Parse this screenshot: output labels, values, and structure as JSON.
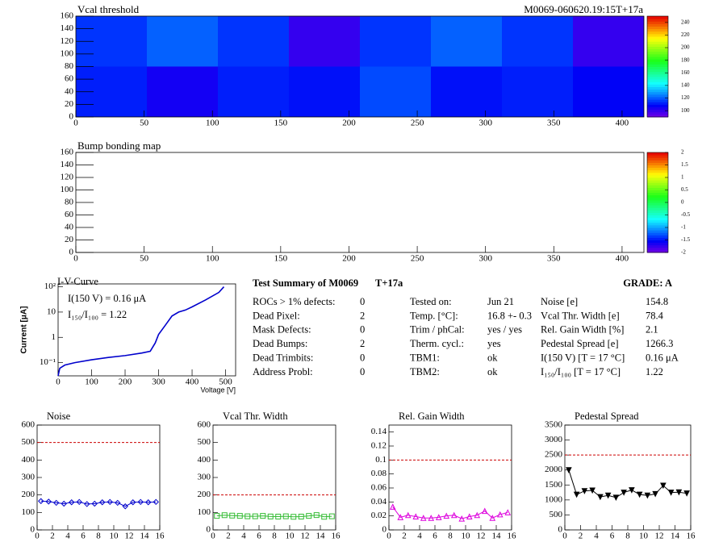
{
  "header": "M0069-060620.19:15T+17a",
  "chart_data": [
    {
      "type": "heatmap",
      "title": "Vcal threshold",
      "xbins": [
        0,
        52,
        104,
        156,
        208,
        260,
        312,
        364,
        416
      ],
      "ybins": [
        0,
        80,
        160
      ],
      "values": [
        [
          112,
          105,
          112,
          110,
          118,
          110,
          112,
          108
        ],
        [
          115,
          121,
          115,
          100,
          115,
          121,
          115,
          100
        ]
      ],
      "xlim": [
        0,
        416
      ],
      "ylim": [
        0,
        160
      ],
      "xticks": [
        0,
        50,
        100,
        150,
        200,
        250,
        300,
        350,
        400
      ],
      "yticks": [
        0,
        20,
        40,
        60,
        80,
        100,
        120,
        140,
        160
      ],
      "zlim": [
        90,
        250
      ],
      "zticks": [
        100,
        120,
        140,
        160,
        180,
        200,
        220,
        240
      ]
    },
    {
      "type": "heatmap",
      "title": "Bump bonding map",
      "xlim": [
        0,
        416
      ],
      "ylim": [
        0,
        160
      ],
      "xticks": [
        0,
        50,
        100,
        150,
        200,
        250,
        300,
        350,
        400
      ],
      "yticks": [
        0,
        20,
        40,
        60,
        80,
        100,
        120,
        140,
        160
      ],
      "zlim": [
        -2,
        2
      ],
      "zticks": [
        -2,
        -1.5,
        -1,
        -0.5,
        0,
        0.5,
        1,
        1.5,
        2
      ]
    },
    {
      "type": "line",
      "title": "I-V-Curve",
      "x_label": "Voltage [V]",
      "y_label": "Current [μA]",
      "annotations": [
        "I(150 V) = 0.16 μA",
        "I₁₅₀/I₁₀₀ =  1.22"
      ],
      "x": [
        0,
        5,
        20,
        50,
        100,
        150,
        200,
        250,
        275,
        290,
        300,
        320,
        340,
        360,
        380,
        400,
        440,
        480,
        495
      ],
      "values": [
        0.03,
        0.06,
        0.08,
        0.1,
        0.13,
        0.16,
        0.19,
        0.24,
        0.28,
        0.6,
        1.3,
        3,
        7,
        10,
        12,
        16,
        30,
        60,
        100
      ],
      "color": "#0000cc",
      "log_y": true,
      "xlim": [
        0,
        530
      ],
      "ylim": [
        0.03,
        130
      ],
      "xticks": [
        0,
        100,
        200,
        300,
        400,
        500
      ],
      "yticks": [
        {
          "value": 0.1,
          "label": "10⁻¹"
        },
        1,
        10,
        {
          "value": 100,
          "label": "10²"
        }
      ]
    },
    {
      "type": "line",
      "title": "Noise",
      "marker": "diamond",
      "color": "#0000cc",
      "x": [
        0.5,
        1.5,
        2.5,
        3.5,
        4.5,
        5.5,
        6.5,
        7.5,
        8.5,
        9.5,
        10.5,
        11.5,
        12.5,
        13.5,
        14.5,
        15.5
      ],
      "values": [
        165,
        162,
        155,
        150,
        158,
        160,
        148,
        150,
        158,
        160,
        155,
        135,
        158,
        160,
        158,
        160
      ],
      "threshold": 500,
      "xlim": [
        0,
        16
      ],
      "ylim": [
        0,
        600
      ],
      "xticks": [
        0,
        2,
        4,
        6,
        8,
        10,
        12,
        14,
        16
      ],
      "yticks": [
        0,
        100,
        200,
        300,
        400,
        500,
        600
      ]
    },
    {
      "type": "line",
      "title": "Vcal Thr. Width",
      "marker": "square",
      "color": "#33bb33",
      "x": [
        0.5,
        1.5,
        2.5,
        3.5,
        4.5,
        5.5,
        6.5,
        7.5,
        8.5,
        9.5,
        10.5,
        11.5,
        12.5,
        13.5,
        14.5,
        15.5
      ],
      "values": [
        80,
        84,
        82,
        80,
        78,
        78,
        80,
        77,
        76,
        78,
        75,
        76,
        80,
        85,
        75,
        78
      ],
      "threshold": 200,
      "xlim": [
        0,
        16
      ],
      "ylim": [
        0,
        600
      ],
      "xticks": [
        0,
        2,
        4,
        6,
        8,
        10,
        12,
        14,
        16
      ],
      "yticks": [
        0,
        100,
        200,
        300,
        400,
        500,
        600
      ]
    },
    {
      "type": "line",
      "title": "Rel. Gain Width",
      "marker": "triangle",
      "color": "#dd00dd",
      "x": [
        0.5,
        1.5,
        2.5,
        3.5,
        4.5,
        5.5,
        6.5,
        7.5,
        8.5,
        9.5,
        10.5,
        11.5,
        12.5,
        13.5,
        14.5,
        15.5
      ],
      "values": [
        0.033,
        0.018,
        0.021,
        0.019,
        0.017,
        0.017,
        0.018,
        0.02,
        0.021,
        0.016,
        0.019,
        0.021,
        0.027,
        0.017,
        0.022,
        0.025
      ],
      "threshold": 0.1,
      "xlim": [
        0,
        16
      ],
      "ylim": [
        0,
        0.15
      ],
      "xticks": [
        0,
        2,
        4,
        6,
        8,
        10,
        12,
        14,
        16
      ],
      "yticks": [
        0,
        0.02,
        0.04,
        0.06,
        0.08,
        0.1,
        0.12,
        0.14
      ]
    },
    {
      "type": "line",
      "title": "Pedestal Spread",
      "marker": "triangle-down",
      "color": "#000000",
      "x": [
        0.5,
        1.5,
        2.5,
        3.5,
        4.5,
        5.5,
        6.5,
        7.5,
        8.5,
        9.5,
        10.5,
        11.5,
        12.5,
        13.5,
        14.5,
        15.5
      ],
      "values": [
        2000,
        1180,
        1300,
        1320,
        1100,
        1150,
        1080,
        1250,
        1330,
        1180,
        1150,
        1200,
        1480,
        1250,
        1260,
        1220
      ],
      "threshold": 2500,
      "xlim": [
        0,
        16
      ],
      "ylim": [
        0,
        3500
      ],
      "xticks": [
        0,
        2,
        4,
        6,
        8,
        10,
        12,
        14,
        16
      ],
      "yticks": [
        0,
        500,
        1000,
        1500,
        2000,
        2500,
        3000,
        3500
      ]
    }
  ],
  "summary": {
    "title": "Test Summary of M0069",
    "tag": "T+17a",
    "grade": "GRADE:  A",
    "left": [
      [
        "ROCs > 1% defects:",
        "0"
      ],
      [
        "Dead Pixel:",
        "2"
      ],
      [
        "Mask Defects:",
        "0"
      ],
      [
        "Dead Bumps:",
        "2"
      ],
      [
        "Dead Trimbits:",
        "0"
      ],
      [
        "Address Probl:",
        "0"
      ]
    ],
    "middle": [
      [
        "Tested on:",
        "Jun 21"
      ],
      [
        "Temp. [°C]:",
        "16.8 +- 0.3"
      ],
      [
        "Trim / phCal:",
        "yes / yes"
      ],
      [
        "Therm. cycl.:",
        "yes"
      ],
      [
        "TBM1:",
        "ok"
      ],
      [
        "TBM2:",
        "ok"
      ]
    ],
    "right": [
      [
        "Noise [e]",
        "154.8"
      ],
      [
        "Vcal Thr. Width [e]",
        "78.4"
      ],
      [
        "Rel. Gain Width [%]",
        "2.1"
      ],
      [
        "Pedestal Spread [e]",
        "1266.3"
      ],
      [
        "I(150 V) [T = 17 °C]",
        "0.16 μA"
      ],
      [
        "I₁₅₀/I₁₀₀  [T = 17 °C]",
        "1.22"
      ]
    ]
  }
}
